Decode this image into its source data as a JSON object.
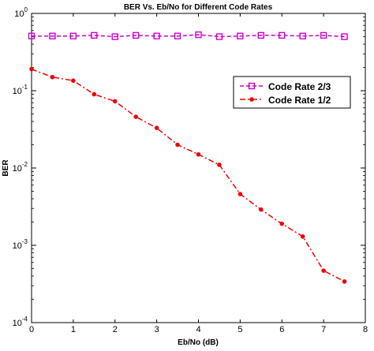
{
  "chart_data": {
    "type": "line",
    "title": "BER Vs. Eb/No for Different Code Rates",
    "xlabel": "Eb/No (dB)",
    "ylabel": "BER",
    "xlim": [
      0,
      8
    ],
    "ylim": [
      0.0001,
      1
    ],
    "yscale": "log",
    "grid": false,
    "legend_position": "top-right",
    "x_ticks": [
      "0",
      "1",
      "2",
      "3",
      "4",
      "5",
      "6",
      "7",
      "8"
    ],
    "y_ticks": [
      {
        "base": "10",
        "exp": "0"
      },
      {
        "base": "10",
        "exp": "-1"
      },
      {
        "base": "10",
        "exp": "-2"
      },
      {
        "base": "10",
        "exp": "-3"
      },
      {
        "base": "10",
        "exp": "-4"
      }
    ],
    "series": [
      {
        "name": "Code Rate 2/3",
        "color": "#cc00cc",
        "marker": "square",
        "line_style": "dashed",
        "x": [
          0,
          0.5,
          1,
          1.5,
          2,
          2.5,
          3,
          3.5,
          4,
          4.5,
          5,
          5.5,
          6,
          6.5,
          7,
          7.5
        ],
        "y": [
          0.51,
          0.51,
          0.51,
          0.52,
          0.5,
          0.52,
          0.51,
          0.51,
          0.53,
          0.5,
          0.51,
          0.52,
          0.52,
          0.51,
          0.52,
          0.5
        ]
      },
      {
        "name": "Code Rate 1/2",
        "color": "#ee0000",
        "marker": "dot",
        "line_style": "dashdot",
        "x": [
          0,
          0.5,
          1,
          1.5,
          2,
          2.5,
          3,
          3.5,
          4,
          4.5,
          5,
          5.5,
          6,
          6.5,
          7,
          7.5
        ],
        "y": [
          0.19,
          0.15,
          0.135,
          0.09,
          0.073,
          0.046,
          0.033,
          0.02,
          0.015,
          0.011,
          0.0046,
          0.0029,
          0.0019,
          0.0013,
          0.00047,
          0.00034
        ]
      }
    ]
  }
}
